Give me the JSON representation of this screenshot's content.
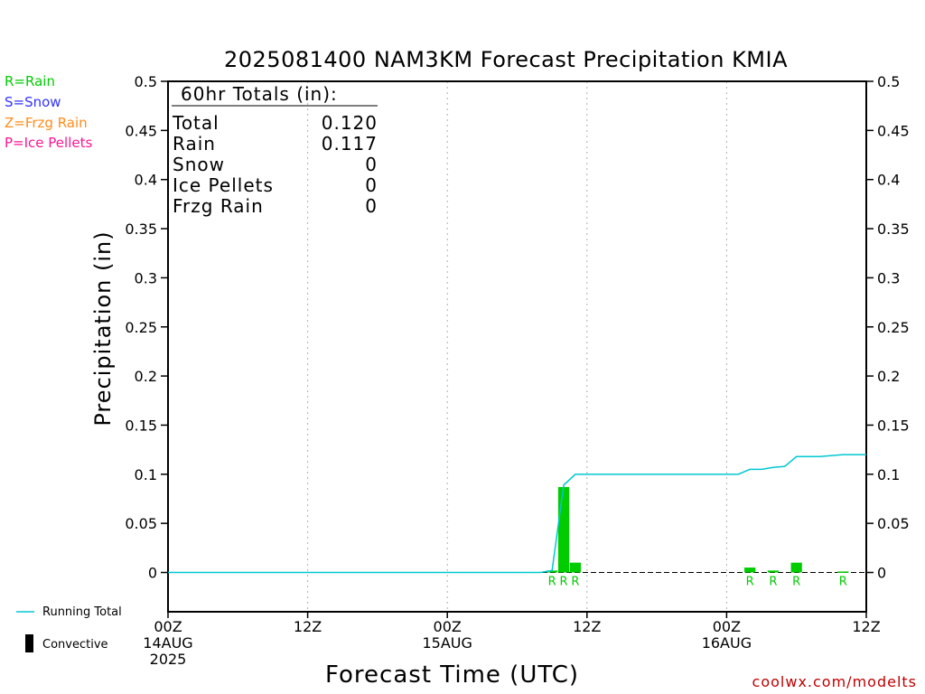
{
  "colors": {
    "rain": "#00cc00",
    "snow": "#3333ff",
    "frzg_rain": "#ff8c1a",
    "ice_pellets": "#ff1493",
    "running_total": "#00c8d2",
    "convective": "#000000",
    "source": "#c00000"
  },
  "precip_type_legend": [
    "R=Rain",
    "S=Snow",
    "Z=Frzg Rain",
    "P=Ice Pellets"
  ],
  "bottom_legend": {
    "running_total": "Running Total",
    "convective": "Convective"
  },
  "source": "coolwx.com/modelts",
  "totals_box": {
    "heading": "60hr Totals (in):",
    "rows": [
      {
        "label": "Total",
        "value": "0.120"
      },
      {
        "label": "Rain",
        "value": "0.117"
      },
      {
        "label": "Snow",
        "value": "0"
      },
      {
        "label": "Ice Pellets",
        "value": "0"
      },
      {
        "label": "Frzg Rain",
        "value": "0"
      }
    ]
  },
  "chart_data": {
    "type": "bar",
    "title": "2025081400 NAM3KM Forecast Precipitation KMIA",
    "xlabel": "Forecast Time (UTC)",
    "ylabel": "Precipitation (in)",
    "x_unit": "forecast hour",
    "xlim": [
      0,
      60
    ],
    "ylim": [
      -0.04,
      0.5
    ],
    "yticks": [
      0,
      0.05,
      0.1,
      0.15,
      0.2,
      0.25,
      0.3,
      0.35,
      0.4,
      0.45,
      0.5
    ],
    "ytick_labels": [
      "0",
      "0.05",
      "0.1",
      "0.15",
      "0.2",
      "0.25",
      "0.3",
      "0.35",
      "0.4",
      "0.45",
      "0.5"
    ],
    "xticks": [
      {
        "hour": 0,
        "lines": [
          "00Z",
          "14AUG",
          "2025"
        ]
      },
      {
        "hour": 12,
        "lines": [
          "12Z"
        ]
      },
      {
        "hour": 24,
        "lines": [
          "00Z",
          "15AUG"
        ]
      },
      {
        "hour": 36,
        "lines": [
          "12Z"
        ]
      },
      {
        "hour": 48,
        "lines": [
          "00Z",
          "16AUG"
        ]
      },
      {
        "hour": 60,
        "lines": [
          "12Z"
        ]
      }
    ],
    "grid": "vertical dotted lines",
    "series": [
      {
        "kind": "bar",
        "type_code": "R",
        "points": [
          {
            "x": 33,
            "y": 0.002
          },
          {
            "x": 34,
            "y": 0.087
          },
          {
            "x": 35,
            "y": 0.01
          },
          {
            "x": 50,
            "y": 0.005
          },
          {
            "x": 52,
            "y": 0.002
          },
          {
            "x": 54,
            "y": 0.01
          },
          {
            "x": 58,
            "y": 0.001
          }
        ]
      },
      {
        "kind": "line",
        "name": "Running Total",
        "points": [
          {
            "x": 0,
            "y": 0
          },
          {
            "x": 32,
            "y": 0
          },
          {
            "x": 33,
            "y": 0.002
          },
          {
            "x": 34,
            "y": 0.089
          },
          {
            "x": 35,
            "y": 0.1
          },
          {
            "x": 49,
            "y": 0.1
          },
          {
            "x": 50,
            "y": 0.105
          },
          {
            "x": 51,
            "y": 0.105
          },
          {
            "x": 52,
            "y": 0.107
          },
          {
            "x": 53,
            "y": 0.108
          },
          {
            "x": 54,
            "y": 0.118
          },
          {
            "x": 56,
            "y": 0.118
          },
          {
            "x": 58,
            "y": 0.12
          },
          {
            "x": 60,
            "y": 0.12
          }
        ]
      }
    ]
  }
}
